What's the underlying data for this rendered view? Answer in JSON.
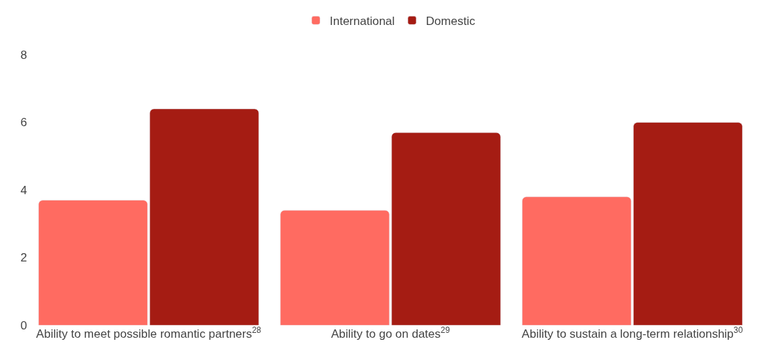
{
  "chart_data": {
    "type": "bar",
    "categories": [
      "Ability to meet possible romantic partners$^{28}$",
      "Ability to go on dates$^{29}$",
      "Ability to sustain a long-term relationship$^{30}$"
    ],
    "series": [
      {
        "name": "International",
        "color": "#ff6b61",
        "values": [
          3.7,
          3.4,
          3.8
        ]
      },
      {
        "name": "Domestic",
        "color": "#a51c13",
        "values": [
          6.4,
          5.7,
          6.0
        ]
      }
    ],
    "ylim": [
      0,
      8
    ],
    "yticks": [
      0,
      2,
      4,
      6,
      8
    ],
    "legend": "top"
  }
}
